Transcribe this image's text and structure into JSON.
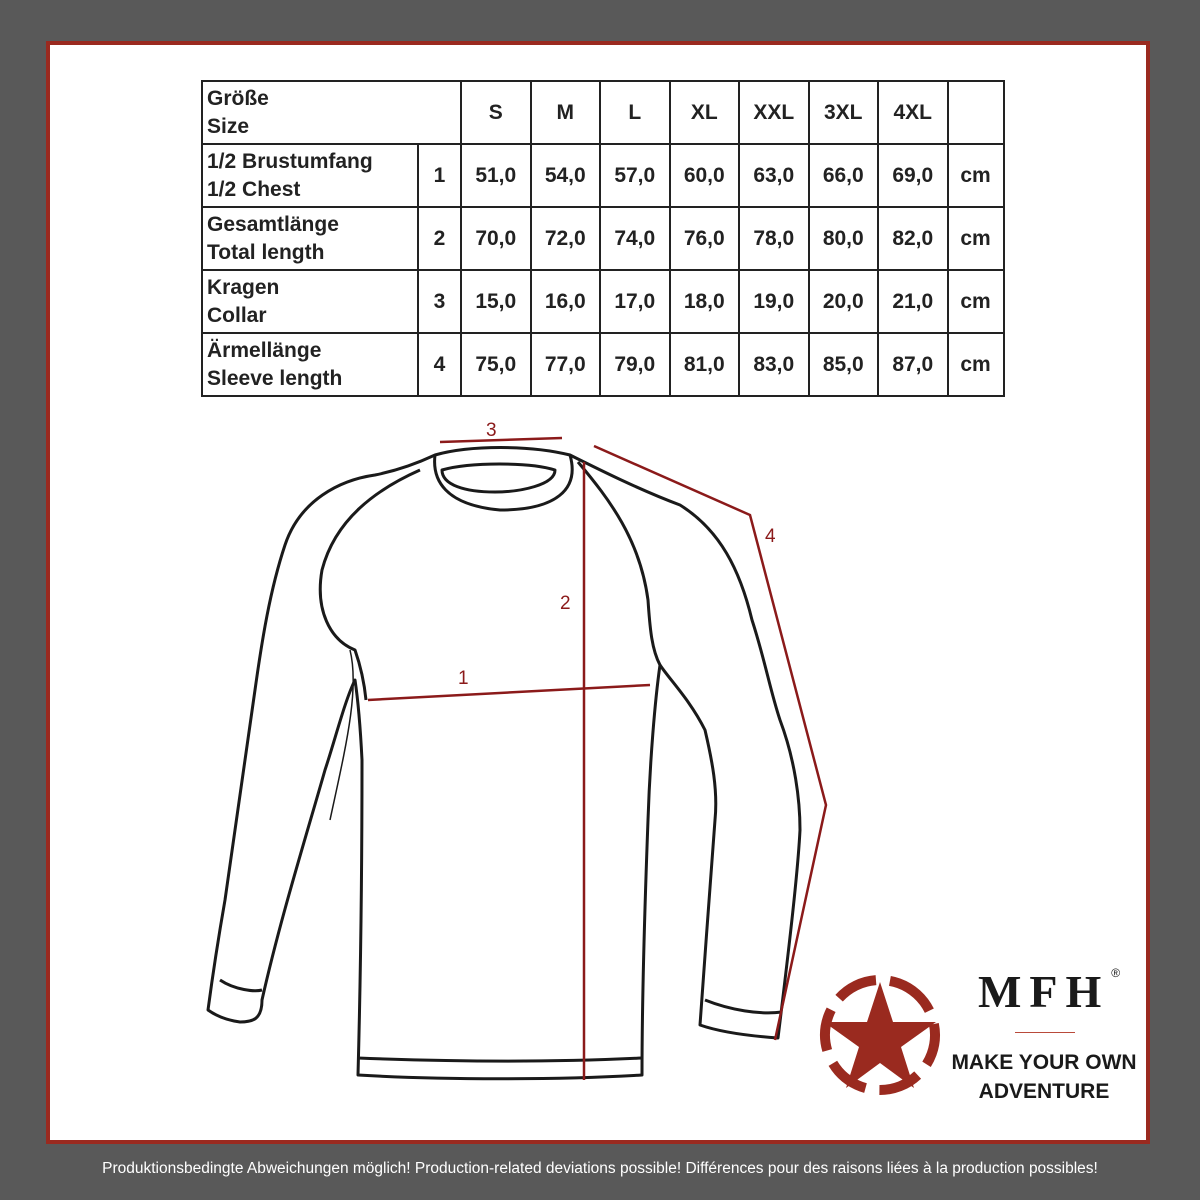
{
  "table": {
    "header": {
      "label_de": "Größe",
      "label_en": "Size",
      "sizes": [
        "S",
        "M",
        "L",
        "XL",
        "XXL",
        "3XL",
        "4XL"
      ]
    },
    "rows": [
      {
        "label_de": "1/2 Brustumfang",
        "label_en": "1/2 Chest",
        "num": "1",
        "values": [
          "51,0",
          "54,0",
          "57,0",
          "60,0",
          "63,0",
          "66,0",
          "69,0"
        ],
        "unit": "cm"
      },
      {
        "label_de": "Gesamtlänge",
        "label_en": "Total length",
        "num": "2",
        "values": [
          "70,0",
          "72,0",
          "74,0",
          "76,0",
          "78,0",
          "80,0",
          "82,0"
        ],
        "unit": "cm"
      },
      {
        "label_de": "Kragen",
        "label_en": "Collar",
        "num": "3",
        "values": [
          "15,0",
          "16,0",
          "17,0",
          "18,0",
          "19,0",
          "20,0",
          "21,0"
        ],
        "unit": "cm"
      },
      {
        "label_de": "Ärmellänge",
        "label_en": "Sleeve length",
        "num": "4",
        "values": [
          "75,0",
          "77,0",
          "79,0",
          "81,0",
          "83,0",
          "85,0",
          "87,0"
        ],
        "unit": "cm"
      }
    ]
  },
  "drawing": {
    "labels": [
      "1",
      "2",
      "3",
      "4"
    ],
    "accent_color": "#8b1a1a"
  },
  "logo": {
    "brand": "MFH",
    "registered": "®",
    "slogan_line1": "MAKE YOUR OWN",
    "slogan_line2": "ADVENTURE",
    "color": "#9a2a1f"
  },
  "footer": "Produktionsbedingte Abweichungen möglich! Production-related deviations possible! Différences pour des raisons liées à la production possibles!"
}
